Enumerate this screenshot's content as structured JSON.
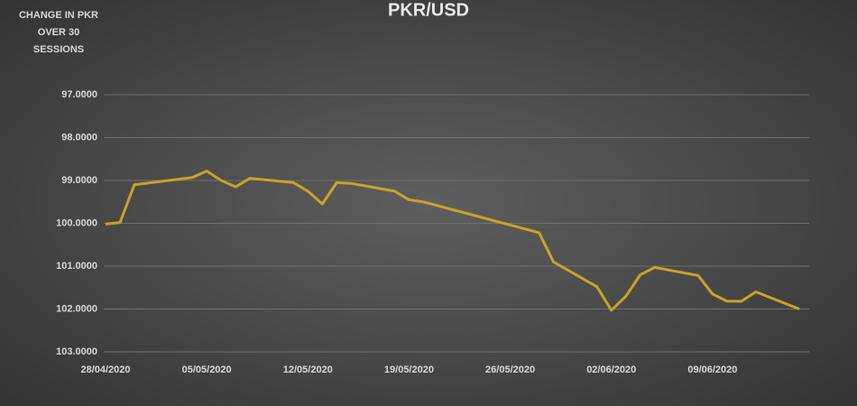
{
  "chart_data": {
    "type": "line",
    "title": "PKR/USD",
    "y_label": "CHANGE IN PKR OVER 30 SESSIONS",
    "x": [
      "28/04/2020",
      "29/04/2020",
      "30/04/2020",
      "04/05/2020",
      "05/05/2020",
      "06/05/2020",
      "07/05/2020",
      "08/05/2020",
      "11/05/2020",
      "12/05/2020",
      "13/05/2020",
      "14/05/2020",
      "15/05/2020",
      "18/05/2020",
      "19/05/2020",
      "20/05/2020",
      "28/05/2020",
      "29/05/2020",
      "01/06/2020",
      "02/06/2020",
      "03/06/2020",
      "04/06/2020",
      "05/06/2020",
      "08/06/2020",
      "09/06/2020",
      "10/06/2020",
      "11/06/2020",
      "12/06/2020",
      "15/06/2020"
    ],
    "series": [
      {
        "name": "PKR/USD",
        "color": "#c9a227",
        "values": [
          100.02,
          99.98,
          99.1,
          98.93,
          98.78,
          99.0,
          99.15,
          98.95,
          99.05,
          99.25,
          99.55,
          99.05,
          99.07,
          99.25,
          99.45,
          99.5,
          100.22,
          100.9,
          101.48,
          102.03,
          101.7,
          101.2,
          101.03,
          101.22,
          101.65,
          101.82,
          101.82,
          101.6,
          102.0
        ]
      }
    ],
    "xlim": [
      "28/04/2020",
      "15/06/2020"
    ],
    "xticks": [
      "28/04/2020",
      "05/05/2020",
      "12/05/2020",
      "19/05/2020",
      "26/05/2020",
      "02/06/2020",
      "09/06/2020"
    ],
    "ylim": [
      97,
      103
    ],
    "y_inverted": true,
    "yticks": [
      {
        "value": 97,
        "label": "97.0000"
      },
      {
        "value": 98,
        "label": "98.0000"
      },
      {
        "value": 99,
        "label": "99.0000"
      },
      {
        "value": 100,
        "label": "100.0000"
      },
      {
        "value": 101,
        "label": "101.0000"
      },
      {
        "value": 102,
        "label": "102.0000"
      },
      {
        "value": 103,
        "label": "103.0000"
      }
    ],
    "grid": true
  }
}
